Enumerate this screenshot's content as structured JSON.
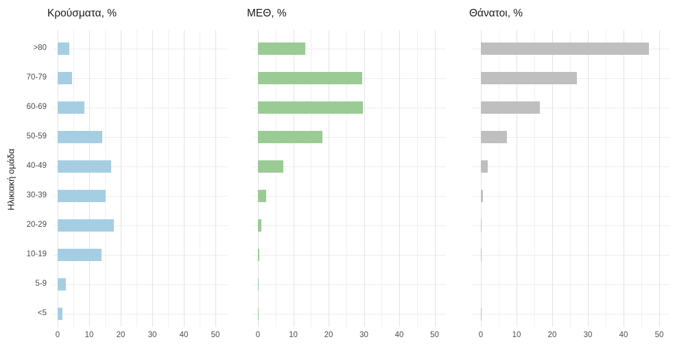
{
  "figure": {
    "y_axis_title": "Ηλικιακή ομάδα",
    "background_color": "#ffffff",
    "gridline_color": "#ededed",
    "text_color": "#4d4d4d",
    "title_color": "#1a1a1a"
  },
  "chart_data": [
    {
      "type": "bar",
      "orientation": "horizontal",
      "title": "Κρούσματα, %",
      "color": "#a6cee3",
      "categories": [
        ">80",
        "70-79",
        "60-69",
        "50-59",
        "40-49",
        "30-39",
        "20-29",
        "10-19",
        "5-9",
        "<5"
      ],
      "values": [
        3.6,
        4.6,
        8.5,
        14.1,
        17.0,
        15.2,
        17.8,
        13.9,
        2.6,
        1.5
      ],
      "xlim": [
        0,
        50
      ],
      "x_ticks": [
        0,
        10,
        20,
        30,
        40,
        50
      ],
      "grid_step": 5,
      "grid": true,
      "ylabel": "Ηλικιακή ομάδα",
      "xlabel": ""
    },
    {
      "type": "bar",
      "orientation": "horizontal",
      "title": "ΜΕΘ, %",
      "color": "#9acb94",
      "categories": [
        ">80",
        "70-79",
        "60-69",
        "50-59",
        "40-49",
        "30-39",
        "20-29",
        "10-19",
        "5-9",
        "<5"
      ],
      "values": [
        13.4,
        29.5,
        29.8,
        18.3,
        7.1,
        2.3,
        1.0,
        0.3,
        0.1,
        0.2
      ],
      "xlim": [
        0,
        50
      ],
      "x_ticks": [
        0,
        10,
        20,
        30,
        40,
        50
      ],
      "grid_step": 5,
      "grid": true,
      "ylabel": "",
      "xlabel": ""
    },
    {
      "type": "bar",
      "orientation": "horizontal",
      "title": "Θάνατοι, %",
      "color": "#bfbfbf",
      "categories": [
        ">80",
        "70-79",
        "60-69",
        "50-59",
        "40-49",
        "30-39",
        "20-29",
        "10-19",
        "5-9",
        "<5"
      ],
      "values": [
        47.2,
        26.9,
        16.5,
        7.3,
        1.9,
        0.6,
        0.2,
        0.2,
        0,
        0.1
      ],
      "xlim": [
        0,
        50
      ],
      "x_ticks": [
        0,
        10,
        20,
        30,
        40,
        50
      ],
      "grid_step": 5,
      "grid": true,
      "ylabel": "",
      "xlabel": ""
    }
  ]
}
